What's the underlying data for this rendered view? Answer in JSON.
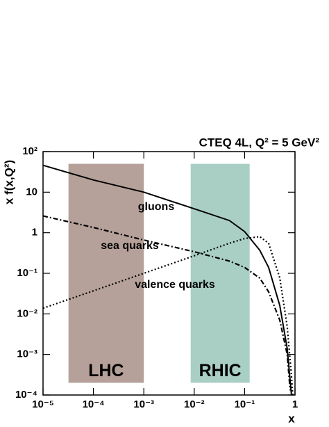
{
  "chart_data": {
    "type": "line",
    "title": "CTEQ 4L,  Q² = 5 GeV²",
    "x_label": "x",
    "y_label": "x f(x,Q²)",
    "xscale": "log",
    "yscale": "log",
    "xlim": [
      1e-05,
      1
    ],
    "ylim": [
      0.0001,
      100
    ],
    "xticks": [
      {
        "value": 1e-05,
        "label": "10⁻⁵"
      },
      {
        "value": 0.0001,
        "label": "10⁻⁴"
      },
      {
        "value": 0.001,
        "label": "10⁻³"
      },
      {
        "value": 0.01,
        "label": "10⁻²"
      },
      {
        "value": 0.1,
        "label": "10⁻¹"
      },
      1
    ],
    "yticks": [
      {
        "value": 0.0001,
        "label": "10⁻⁴"
      },
      {
        "value": 0.001,
        "label": "10⁻³"
      },
      {
        "value": 0.01,
        "label": "10⁻²"
      },
      {
        "value": 0.1,
        "label": "10⁻¹"
      },
      1,
      10,
      {
        "value": 100,
        "label": "10²"
      }
    ],
    "bands": [
      {
        "label": "LHC",
        "x": [
          3.2e-05,
          0.001
        ],
        "y": [
          0.0002,
          50
        ],
        "color": "#b5a199"
      },
      {
        "label": "RHIC",
        "x": [
          0.0085,
          0.126
        ],
        "y": [
          0.0002,
          50
        ],
        "color": "#a9cfc5"
      }
    ],
    "series": [
      {
        "name": "gluons",
        "color": "#000000",
        "linestyle": "solid",
        "x": [
          1e-05,
          0.0001,
          0.001,
          0.01,
          0.05,
          0.1,
          0.2,
          0.3,
          0.5,
          0.7,
          0.85
        ],
        "values": [
          46,
          20,
          10,
          3.9,
          2,
          1.07,
          0.37,
          0.14,
          0.016,
          0.0014,
          0.0001
        ]
      },
      {
        "name": "sea quarks",
        "color": "#000000",
        "linestyle": "dashdot",
        "x": [
          1e-05,
          0.0001,
          0.001,
          0.01,
          0.05,
          0.1,
          0.2,
          0.3,
          0.5,
          0.7,
          0.8
        ],
        "values": [
          2.6,
          1.35,
          0.66,
          0.34,
          0.2,
          0.14,
          0.076,
          0.035,
          0.007,
          0.001,
          0.00013
        ]
      },
      {
        "name": "valence quarks",
        "color": "#000000",
        "linestyle": "dotted",
        "x": [
          1e-05,
          0.0001,
          0.001,
          0.01,
          0.05,
          0.1,
          0.2,
          0.3,
          0.5,
          0.7,
          0.85,
          0.9
        ],
        "values": [
          0.0138,
          0.037,
          0.1,
          0.27,
          0.55,
          0.72,
          0.8,
          0.55,
          0.077,
          0.0048,
          0.0003,
          0.0001
        ]
      }
    ]
  }
}
